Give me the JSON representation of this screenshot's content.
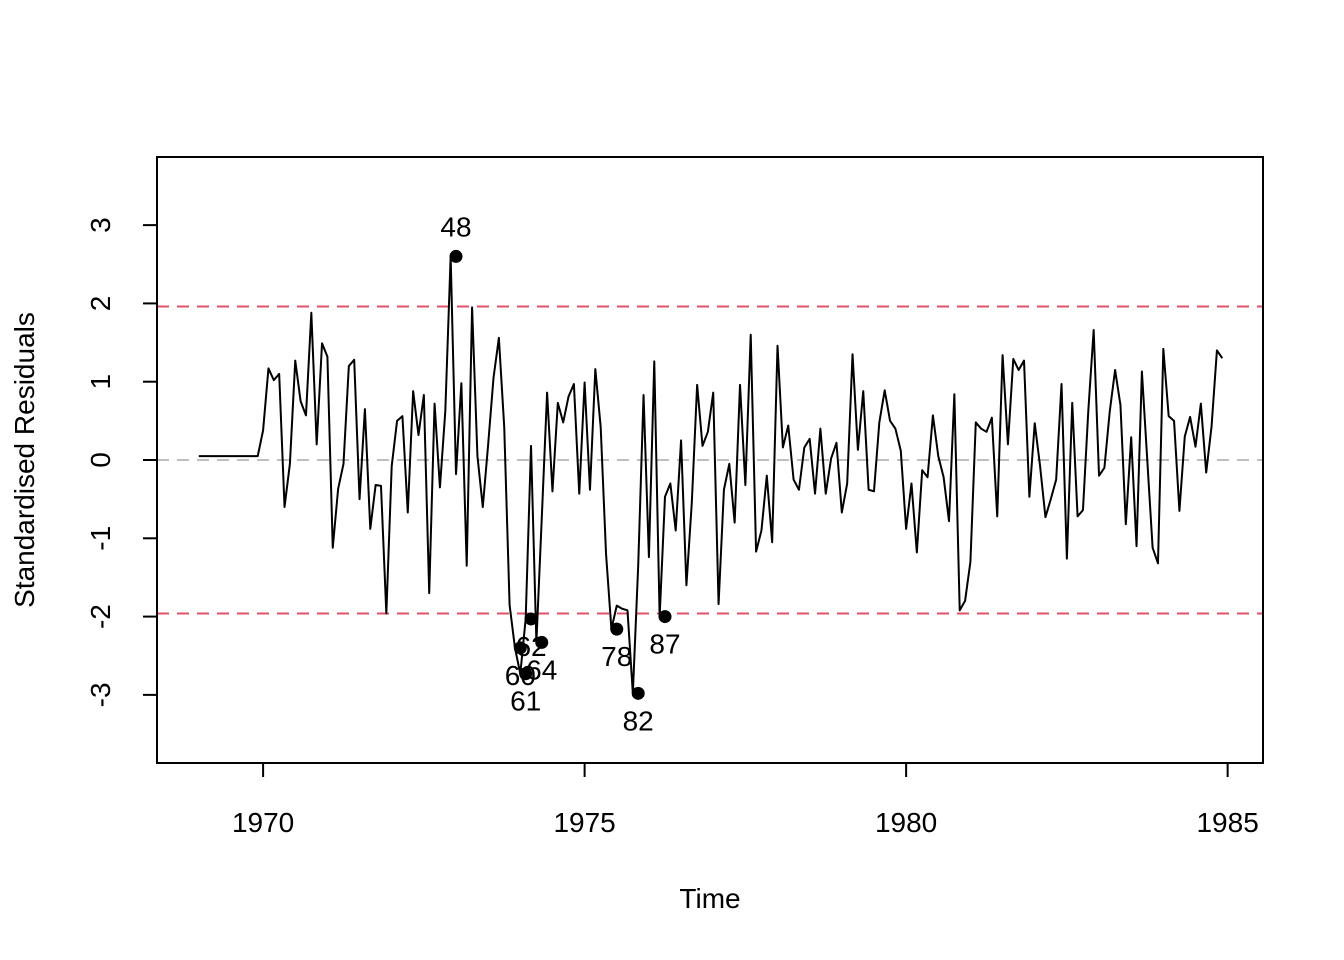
{
  "chart_data": {
    "type": "line",
    "title": "",
    "xlabel": "Time",
    "ylabel": "Standardised Residuals",
    "xlim": [
      1968.35,
      1985.55
    ],
    "ylim": [
      -3.87,
      3.87
    ],
    "x_ticks": [
      1970,
      1975,
      1980,
      1985
    ],
    "x_tick_labels": [
      "1970",
      "1975",
      "1980",
      "1985"
    ],
    "y_ticks": [
      -3,
      -2,
      -1,
      0,
      1,
      2,
      3
    ],
    "y_tick_labels": [
      "-3",
      "-2",
      "-1",
      "0",
      "1",
      "2",
      "3"
    ],
    "grid": false,
    "legend": "none",
    "reference_lines": [
      {
        "y": 1.96,
        "color": "#DF536B",
        "style": "dashed"
      },
      {
        "y": -1.96,
        "color": "#DF536B",
        "style": "dashed"
      },
      {
        "y": 0,
        "color": "#BEBEBE",
        "style": "dashed"
      }
    ],
    "series": [
      {
        "color": "#000000",
        "start_year": 1969,
        "frequency": 12,
        "values": [
          0.05,
          0.05,
          0.05,
          0.05,
          0.05,
          0.05,
          0.05,
          0.05,
          0.05,
          0.05,
          0.05,
          0.05,
          0.38,
          1.17,
          1.02,
          1.1,
          -0.6,
          -0.05,
          1.27,
          0.75,
          0.57,
          1.88,
          0.2,
          1.49,
          1.32,
          -1.12,
          -0.37,
          -0.05,
          1.2,
          1.28,
          -0.5,
          0.65,
          -0.88,
          -0.32,
          -0.33,
          -1.96,
          -0.08,
          0.5,
          0.56,
          -0.67,
          0.88,
          0.32,
          0.83,
          -1.7,
          0.72,
          -0.35,
          0.62,
          2.6,
          -0.18,
          0.98,
          -1.35,
          1.95,
          0.05,
          -0.6,
          0.2,
          1.05,
          1.56,
          0.42,
          -1.85,
          -2.4,
          -2.73,
          -2.03,
          0.18,
          -2.33,
          -0.75,
          0.86,
          -0.4,
          0.73,
          0.48,
          0.81,
          0.97,
          -0.43,
          0.99,
          -0.38,
          1.16,
          0.42,
          -1.2,
          -2.16,
          -1.86,
          -1.9,
          -1.92,
          -2.98,
          -1.35,
          0.83,
          -1.24,
          1.26,
          -2.0,
          -0.47,
          -0.3,
          -0.9,
          0.25,
          -1.6,
          -0.55,
          0.96,
          0.18,
          0.36,
          0.86,
          -1.84,
          -0.38,
          -0.05,
          -0.8,
          0.96,
          -0.32,
          1.6,
          -1.17,
          -0.9,
          -0.2,
          -1.05,
          1.46,
          0.16,
          0.44,
          -0.25,
          -0.38,
          0.16,
          0.27,
          -0.43,
          0.4,
          -0.43,
          0.02,
          0.22,
          -0.67,
          -0.3,
          1.35,
          0.13,
          0.88,
          -0.38,
          -0.4,
          0.48,
          0.89,
          0.5,
          0.4,
          0.12,
          -0.88,
          -0.3,
          -1.18,
          -0.13,
          -0.22,
          0.57,
          0.05,
          -0.22,
          -0.78,
          0.84,
          -1.92,
          -1.8,
          -1.3,
          0.48,
          0.4,
          0.36,
          0.54,
          -0.72,
          1.34,
          0.2,
          1.29,
          1.15,
          1.27,
          -0.47,
          0.47,
          -0.08,
          -0.73,
          -0.5,
          -0.25,
          0.97,
          -1.26,
          0.73,
          -0.72,
          -0.64,
          0.63,
          1.66,
          -0.2,
          -0.1,
          0.62,
          1.15,
          0.7,
          -0.82,
          0.29,
          -1.1,
          1.13,
          0.0,
          -1.12,
          -1.32,
          1.42,
          0.56,
          0.5,
          -0.65,
          0.3,
          0.55,
          0.17,
          0.72,
          -0.16,
          0.43,
          1.4,
          1.3
        ]
      }
    ],
    "outliers": [
      {
        "index": 48,
        "label": "48",
        "value": 2.6,
        "label_pos": "above"
      },
      {
        "index": 60,
        "label": "60",
        "value": -2.4,
        "label_pos": "below"
      },
      {
        "index": 61,
        "label": "61",
        "value": -2.73,
        "label_pos": "below"
      },
      {
        "index": 62,
        "label": "62",
        "value": -2.03,
        "label_pos": "below"
      },
      {
        "index": 64,
        "label": "64",
        "value": -2.33,
        "label_pos": "below"
      },
      {
        "index": 78,
        "label": "78",
        "value": -2.16,
        "label_pos": "below"
      },
      {
        "index": 82,
        "label": "82",
        "value": -2.98,
        "label_pos": "below"
      },
      {
        "index": 87,
        "label": "87",
        "value": -2.0,
        "label_pos": "below"
      }
    ]
  }
}
